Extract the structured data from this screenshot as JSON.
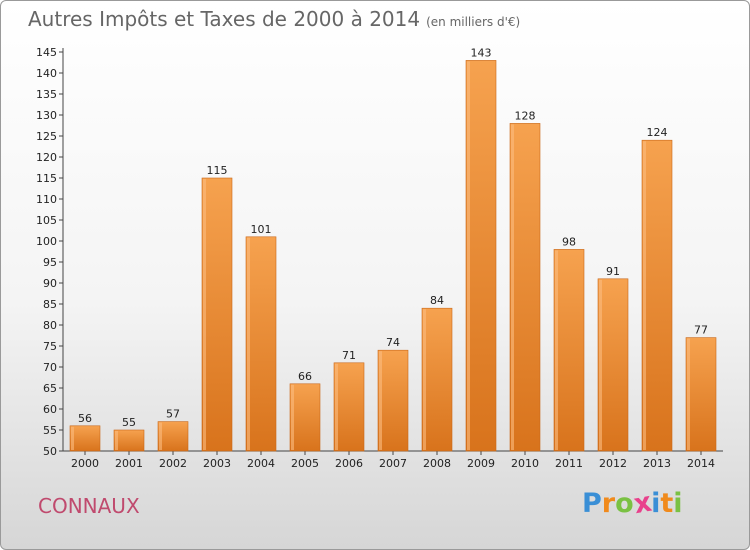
{
  "title": "Autres Impôts et Taxes de 2000 à 2014",
  "subtitle": "(en milliers d'€)",
  "commune": "CONNAUX",
  "logo": {
    "letters": [
      "P",
      "r",
      "o",
      "x",
      "i",
      "t",
      "i"
    ],
    "colors": [
      "#3a8fd6",
      "#f08a1c",
      "#7ac143",
      "#e8418c",
      "#3a8fd6",
      "#f08a1c",
      "#7ac143"
    ]
  },
  "chart_data": {
    "type": "bar",
    "categories": [
      "2000",
      "2001",
      "2002",
      "2003",
      "2004",
      "2005",
      "2006",
      "2007",
      "2008",
      "2009",
      "2010",
      "2011",
      "2012",
      "2013",
      "2014"
    ],
    "values": [
      56,
      55,
      57,
      115,
      101,
      66,
      71,
      74,
      84,
      143,
      128,
      98,
      91,
      124,
      77
    ],
    "title": "Autres Impôts et Taxes de 2000 à 2014",
    "subtitle": "(en milliers d'€)",
    "ylim": [
      50,
      145
    ],
    "yticks": [
      50,
      55,
      60,
      65,
      70,
      75,
      80,
      85,
      90,
      95,
      100,
      105,
      110,
      115,
      120,
      125,
      130,
      135,
      140,
      145
    ],
    "grid": false,
    "bar_color": "#f08a2a"
  }
}
